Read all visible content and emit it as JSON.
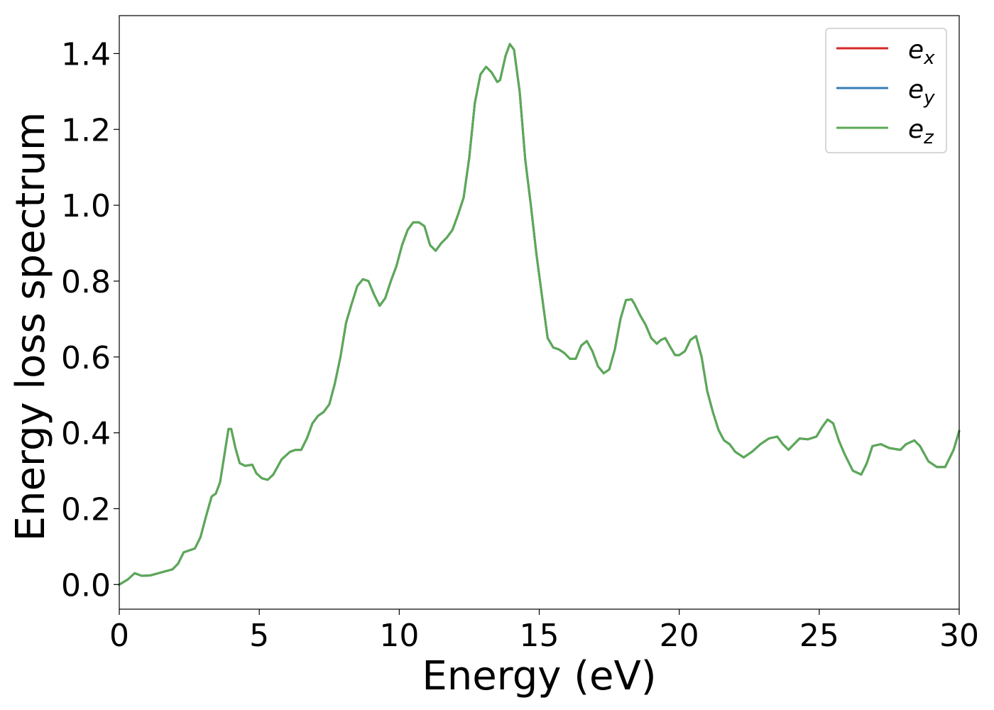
{
  "chart_data": {
    "type": "line",
    "title": "",
    "xlabel": "Energy (eV)",
    "ylabel": "Energy loss spectrum",
    "xlim": [
      0,
      30
    ],
    "ylim": [
      -0.065,
      1.5
    ],
    "xticks": [
      0,
      5,
      10,
      15,
      20,
      25,
      30
    ],
    "xtick_labels": [
      "0",
      "5",
      "10",
      "15",
      "20",
      "25",
      "30"
    ],
    "yticks": [
      0.0,
      0.2,
      0.4,
      0.6,
      0.8,
      1.0,
      1.2,
      1.4
    ],
    "ytick_labels": [
      "0.0",
      "0.2",
      "0.4",
      "0.6",
      "0.8",
      "1.0",
      "1.2",
      "1.4"
    ],
    "grid": false,
    "legend_position": "top-right",
    "x": [
      0,
      0.3,
      0.55,
      0.8,
      1.1,
      1.5,
      1.9,
      2.1,
      2.3,
      2.5,
      2.7,
      2.9,
      3.1,
      3.3,
      3.45,
      3.6,
      3.75,
      3.9,
      4.0,
      4.15,
      4.3,
      4.5,
      4.75,
      4.9,
      5.1,
      5.3,
      5.5,
      5.8,
      6.1,
      6.3,
      6.5,
      6.7,
      6.9,
      7.1,
      7.3,
      7.5,
      7.7,
      7.9,
      8.1,
      8.3,
      8.5,
      8.7,
      8.9,
      9.1,
      9.3,
      9.5,
      9.7,
      9.9,
      10.1,
      10.3,
      10.5,
      10.7,
      10.9,
      11.1,
      11.3,
      11.5,
      11.7,
      11.9,
      12.1,
      12.3,
      12.5,
      12.7,
      12.9,
      13.1,
      13.3,
      13.5,
      13.6,
      13.8,
      13.95,
      14.1,
      14.3,
      14.5,
      14.7,
      14.9,
      15.1,
      15.3,
      15.5,
      15.7,
      15.9,
      16.1,
      16.3,
      16.5,
      16.7,
      16.9,
      17.1,
      17.3,
      17.5,
      17.7,
      17.9,
      18.1,
      18.3,
      18.4,
      18.6,
      18.8,
      19.0,
      19.2,
      19.35,
      19.5,
      19.65,
      19.85,
      20.0,
      20.2,
      20.4,
      20.6,
      20.8,
      21.0,
      21.2,
      21.4,
      21.6,
      21.8,
      22.0,
      22.3,
      22.6,
      22.9,
      23.2,
      23.5,
      23.7,
      23.9,
      24.1,
      24.3,
      24.6,
      24.9,
      25.1,
      25.3,
      25.5,
      25.7,
      25.9,
      26.2,
      26.5,
      26.7,
      26.9,
      27.2,
      27.5,
      27.9,
      28.1,
      28.4,
      28.6,
      28.9,
      29.2,
      29.5,
      29.8,
      30.0
    ],
    "series": [
      {
        "name": "e_x",
        "label_base": "e",
        "label_sub": "x",
        "color": "#d62728",
        "y": [
          0.0,
          0.013,
          0.03,
          0.023,
          0.024,
          0.032,
          0.04,
          0.055,
          0.085,
          0.09,
          0.095,
          0.125,
          0.18,
          0.232,
          0.24,
          0.27,
          0.34,
          0.41,
          0.41,
          0.36,
          0.32,
          0.313,
          0.316,
          0.293,
          0.28,
          0.276,
          0.29,
          0.33,
          0.35,
          0.355,
          0.355,
          0.385,
          0.425,
          0.445,
          0.455,
          0.475,
          0.53,
          0.6,
          0.69,
          0.74,
          0.787,
          0.805,
          0.8,
          0.765,
          0.735,
          0.755,
          0.8,
          0.84,
          0.895,
          0.935,
          0.955,
          0.955,
          0.945,
          0.895,
          0.88,
          0.9,
          0.915,
          0.935,
          0.975,
          1.02,
          1.125,
          1.27,
          1.345,
          1.365,
          1.35,
          1.325,
          1.33,
          1.395,
          1.425,
          1.41,
          1.3,
          1.12,
          1.0,
          0.87,
          0.76,
          0.65,
          0.625,
          0.62,
          0.61,
          0.595,
          0.595,
          0.63,
          0.642,
          0.615,
          0.575,
          0.557,
          0.567,
          0.62,
          0.7,
          0.75,
          0.752,
          0.74,
          0.71,
          0.685,
          0.65,
          0.635,
          0.645,
          0.65,
          0.63,
          0.605,
          0.605,
          0.615,
          0.645,
          0.655,
          0.6,
          0.51,
          0.455,
          0.408,
          0.38,
          0.37,
          0.35,
          0.335,
          0.35,
          0.37,
          0.385,
          0.39,
          0.37,
          0.355,
          0.37,
          0.385,
          0.383,
          0.39,
          0.415,
          0.435,
          0.425,
          0.38,
          0.345,
          0.3,
          0.29,
          0.32,
          0.365,
          0.37,
          0.36,
          0.355,
          0.37,
          0.38,
          0.365,
          0.325,
          0.31,
          0.31,
          0.355,
          0.405
        ]
      },
      {
        "name": "e_y",
        "label_base": "e",
        "label_sub": "y",
        "color": "#377eb8",
        "y": [
          0.0,
          0.013,
          0.03,
          0.023,
          0.024,
          0.032,
          0.04,
          0.055,
          0.085,
          0.09,
          0.095,
          0.125,
          0.18,
          0.232,
          0.24,
          0.27,
          0.34,
          0.41,
          0.41,
          0.36,
          0.32,
          0.313,
          0.316,
          0.293,
          0.28,
          0.276,
          0.29,
          0.33,
          0.35,
          0.355,
          0.355,
          0.385,
          0.425,
          0.445,
          0.455,
          0.475,
          0.53,
          0.6,
          0.69,
          0.74,
          0.787,
          0.805,
          0.8,
          0.765,
          0.735,
          0.755,
          0.8,
          0.84,
          0.895,
          0.935,
          0.955,
          0.955,
          0.945,
          0.895,
          0.88,
          0.9,
          0.915,
          0.935,
          0.975,
          1.02,
          1.125,
          1.27,
          1.345,
          1.365,
          1.35,
          1.325,
          1.33,
          1.395,
          1.425,
          1.41,
          1.3,
          1.12,
          1.0,
          0.87,
          0.76,
          0.65,
          0.625,
          0.62,
          0.61,
          0.595,
          0.595,
          0.63,
          0.642,
          0.615,
          0.575,
          0.557,
          0.567,
          0.62,
          0.7,
          0.75,
          0.752,
          0.74,
          0.71,
          0.685,
          0.65,
          0.635,
          0.645,
          0.65,
          0.63,
          0.605,
          0.605,
          0.615,
          0.645,
          0.655,
          0.6,
          0.51,
          0.455,
          0.408,
          0.38,
          0.37,
          0.35,
          0.335,
          0.35,
          0.37,
          0.385,
          0.39,
          0.37,
          0.355,
          0.37,
          0.385,
          0.383,
          0.39,
          0.415,
          0.435,
          0.425,
          0.38,
          0.345,
          0.3,
          0.29,
          0.32,
          0.365,
          0.37,
          0.36,
          0.355,
          0.37,
          0.38,
          0.365,
          0.325,
          0.31,
          0.31,
          0.355,
          0.405
        ]
      },
      {
        "name": "e_z",
        "label_base": "e",
        "label_sub": "z",
        "color": "#5aaa55",
        "y": [
          0.0,
          0.013,
          0.03,
          0.023,
          0.024,
          0.032,
          0.04,
          0.055,
          0.085,
          0.09,
          0.095,
          0.125,
          0.18,
          0.232,
          0.24,
          0.27,
          0.34,
          0.41,
          0.41,
          0.36,
          0.32,
          0.313,
          0.316,
          0.293,
          0.28,
          0.276,
          0.29,
          0.33,
          0.35,
          0.355,
          0.355,
          0.385,
          0.425,
          0.445,
          0.455,
          0.475,
          0.53,
          0.6,
          0.69,
          0.74,
          0.787,
          0.805,
          0.8,
          0.765,
          0.735,
          0.755,
          0.8,
          0.84,
          0.895,
          0.935,
          0.955,
          0.955,
          0.945,
          0.895,
          0.88,
          0.9,
          0.915,
          0.935,
          0.975,
          1.02,
          1.125,
          1.27,
          1.345,
          1.365,
          1.35,
          1.325,
          1.33,
          1.395,
          1.425,
          1.41,
          1.3,
          1.12,
          1.0,
          0.87,
          0.76,
          0.65,
          0.625,
          0.62,
          0.61,
          0.595,
          0.595,
          0.63,
          0.642,
          0.615,
          0.575,
          0.557,
          0.567,
          0.62,
          0.7,
          0.75,
          0.752,
          0.74,
          0.71,
          0.685,
          0.65,
          0.635,
          0.645,
          0.65,
          0.63,
          0.605,
          0.605,
          0.615,
          0.645,
          0.655,
          0.6,
          0.51,
          0.455,
          0.408,
          0.38,
          0.37,
          0.35,
          0.335,
          0.35,
          0.37,
          0.385,
          0.39,
          0.37,
          0.355,
          0.37,
          0.385,
          0.383,
          0.39,
          0.415,
          0.435,
          0.425,
          0.38,
          0.345,
          0.3,
          0.29,
          0.32,
          0.365,
          0.37,
          0.36,
          0.355,
          0.37,
          0.38,
          0.365,
          0.325,
          0.31,
          0.31,
          0.355,
          0.405
        ]
      }
    ]
  }
}
